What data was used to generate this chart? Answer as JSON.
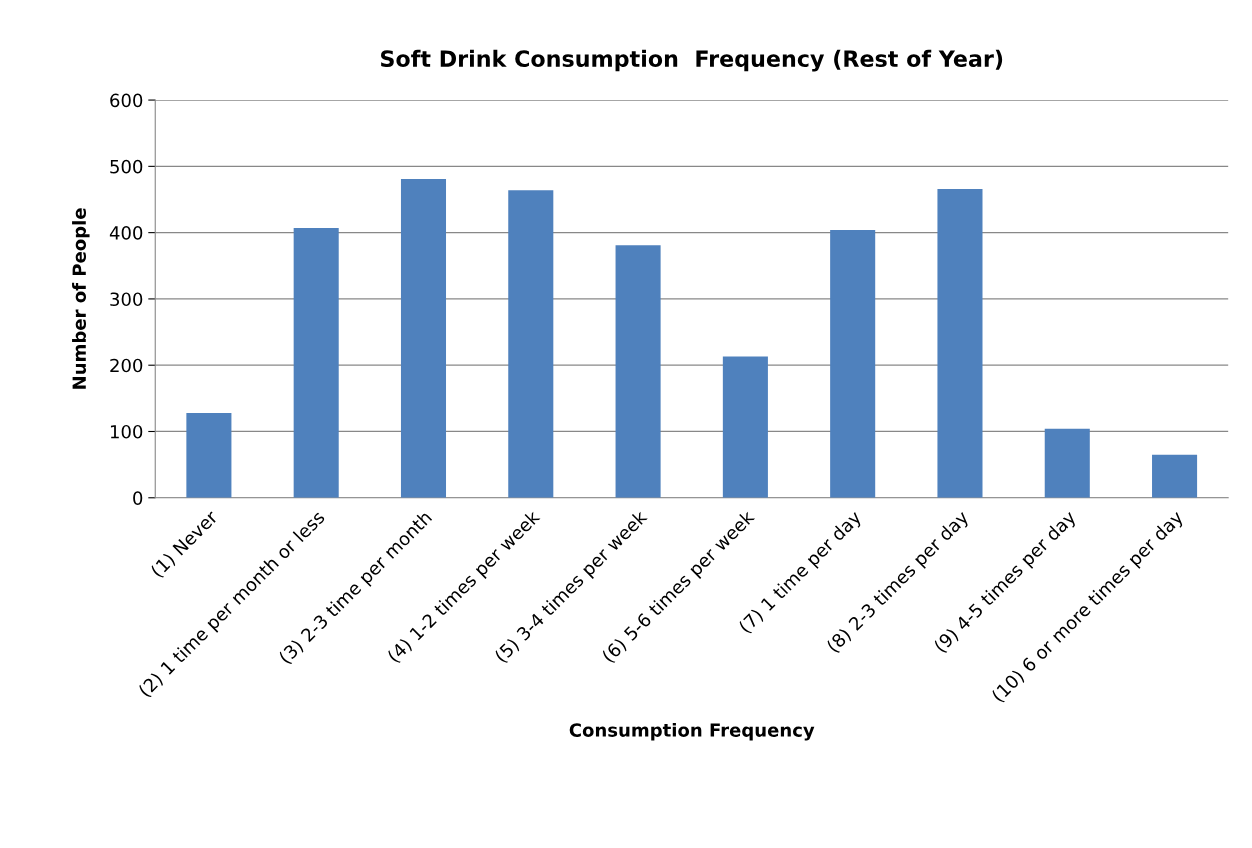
{
  "chart_data": {
    "type": "bar",
    "title": "Soft Drink Consumption  Frequency (Rest of Year)",
    "xlabel": "Consumption Frequency",
    "ylabel": "Number of People",
    "categories": [
      "(1) Never",
      "(2) 1 time per month or less",
      "(3) 2-3 time per month",
      "(4) 1-2 times per week",
      "(5) 3-4 times per week",
      "(6) 5-6 times per week",
      "(7) 1 time per day",
      "(8) 2-3 times per day",
      "(9) 4-5 times per day",
      "(10) 6 or more times per day"
    ],
    "values": [
      128,
      407,
      481,
      464,
      381,
      213,
      404,
      466,
      104,
      65
    ],
    "color": "#4f81bd",
    "ylim": [
      0,
      600
    ],
    "yticks": [
      0,
      100,
      200,
      300,
      400,
      500,
      600
    ],
    "grid": "y"
  }
}
